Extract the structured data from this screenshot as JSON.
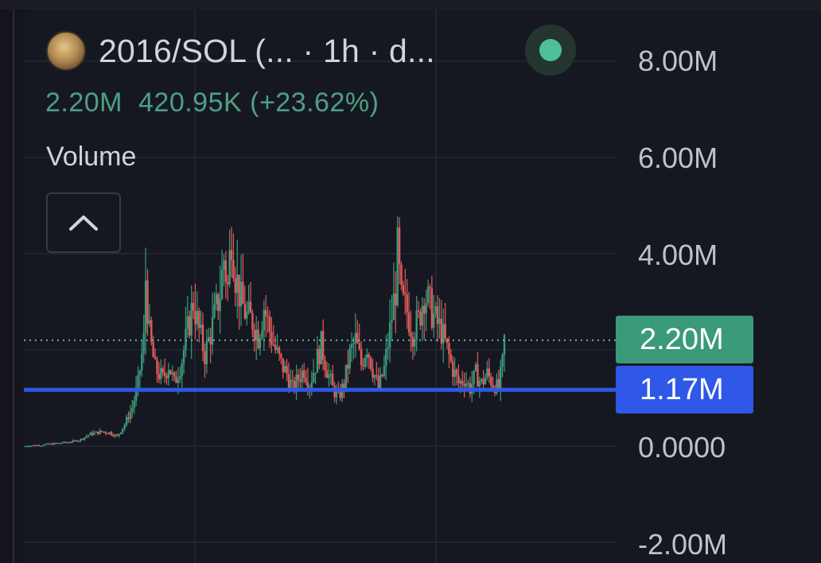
{
  "header": {
    "title": "2016/SOL (... · 1h · d...",
    "avatar_icon": "token-avatar",
    "status_icon": "live-status-dot",
    "status_color": "#4fbf98"
  },
  "legend": {
    "value": "2.20M",
    "change": "420.95K (+23.62%)",
    "color": "#4e9f84"
  },
  "indicator": {
    "name": "Volume",
    "collapse_icon": "chevron-up-icon"
  },
  "chart_data": {
    "type": "bar",
    "ylim": [
      -2000000,
      8000000
    ],
    "ytick_labels": [
      "8.00M",
      "6.00M",
      "4.00M",
      "0.0000",
      "-2.00M"
    ],
    "ytick_values": [
      8000000,
      6000000,
      4000000,
      0,
      -2000000
    ],
    "current_value": 2200000,
    "current_label": "2.20M",
    "current_color": "#3a9a7a",
    "line_value": 1170000,
    "line_label": "1.17M",
    "line_color": "#2f57e8",
    "up_color": "#3a9a7a",
    "down_color": "#e05b5b",
    "grid": true,
    "anchors": [
      [
        0,
        0.0
      ],
      [
        8,
        0.02
      ],
      [
        15,
        0.05
      ],
      [
        22,
        0.08
      ],
      [
        28,
        0.12
      ],
      [
        34,
        0.25
      ],
      [
        40,
        0.3
      ],
      [
        44,
        0.28
      ],
      [
        48,
        0.2
      ],
      [
        52,
        0.45
      ],
      [
        56,
        0.8
      ],
      [
        59,
        1.3
      ],
      [
        62,
        2.2
      ],
      [
        63,
        3.5
      ],
      [
        65,
        2.3
      ],
      [
        68,
        1.6
      ],
      [
        72,
        1.4
      ],
      [
        75,
        1.7
      ],
      [
        78,
        1.3
      ],
      [
        82,
        1.8
      ],
      [
        85,
        2.4
      ],
      [
        88,
        3.0
      ],
      [
        91,
        2.4
      ],
      [
        94,
        1.9
      ],
      [
        98,
        2.5
      ],
      [
        102,
        3.2
      ],
      [
        104,
        3.9
      ],
      [
        106,
        3.3
      ],
      [
        108,
        4.5
      ],
      [
        110,
        3.6
      ],
      [
        113,
        3.0
      ],
      [
        116,
        2.7
      ],
      [
        119,
        2.6
      ],
      [
        122,
        2.3
      ],
      [
        125,
        2.9
      ],
      [
        128,
        2.4
      ],
      [
        131,
        2.0
      ],
      [
        134,
        1.7
      ],
      [
        137,
        1.5
      ],
      [
        140,
        1.2
      ],
      [
        143,
        1.4
      ],
      [
        146,
        1.6
      ],
      [
        149,
        1.3
      ],
      [
        152,
        1.7
      ],
      [
        155,
        2.1
      ],
      [
        158,
        1.6
      ],
      [
        161,
        1.2
      ],
      [
        164,
        1.0
      ],
      [
        167,
        1.3
      ],
      [
        170,
        1.9
      ],
      [
        173,
        2.2
      ],
      [
        176,
        1.7
      ],
      [
        179,
        2.1
      ],
      [
        182,
        1.6
      ],
      [
        185,
        1.2
      ],
      [
        188,
        1.6
      ],
      [
        191,
        2.4
      ],
      [
        194,
        3.3
      ],
      [
        195,
        4.0
      ],
      [
        197,
        3.0
      ],
      [
        200,
        2.8
      ],
      [
        203,
        2.4
      ],
      [
        206,
        2.6
      ],
      [
        209,
        3.2
      ],
      [
        212,
        2.9
      ],
      [
        215,
        2.6
      ],
      [
        218,
        2.4
      ],
      [
        221,
        2.0
      ],
      [
        224,
        1.6
      ],
      [
        227,
        1.3
      ],
      [
        230,
        1.4
      ],
      [
        233,
        1.2
      ],
      [
        236,
        1.5
      ],
      [
        239,
        1.3
      ],
      [
        242,
        1.5
      ],
      [
        245,
        1.3
      ],
      [
        248,
        1.2
      ],
      [
        250,
        1.7
      ],
      [
        251,
        2.2
      ]
    ]
  }
}
